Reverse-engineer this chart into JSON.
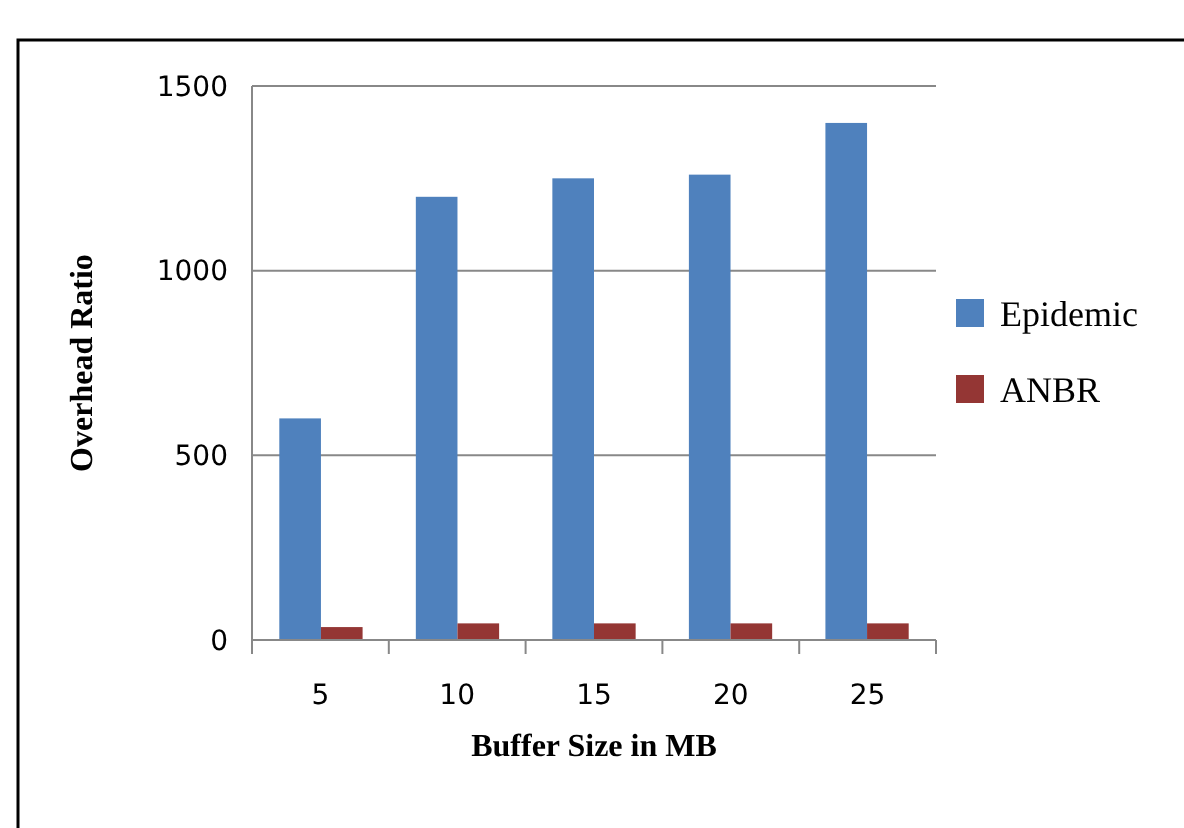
{
  "chart_data": {
    "type": "bar",
    "xlabel": "Buffer Size in MB",
    "ylabel": "Overhead Ratio",
    "categories": [
      "5",
      "10",
      "15",
      "20",
      "25"
    ],
    "series": [
      {
        "name": "Epidemic",
        "color": "#4f81bd",
        "values": [
          600,
          1200,
          1250,
          1260,
          1400
        ]
      },
      {
        "name": "ANBR",
        "color": "#943634",
        "values": [
          35,
          45,
          45,
          45,
          45
        ]
      }
    ],
    "ylim": [
      0,
      1500
    ],
    "yticks": [
      0,
      500,
      1000,
      1500
    ],
    "grid": "y",
    "legend": "right"
  }
}
